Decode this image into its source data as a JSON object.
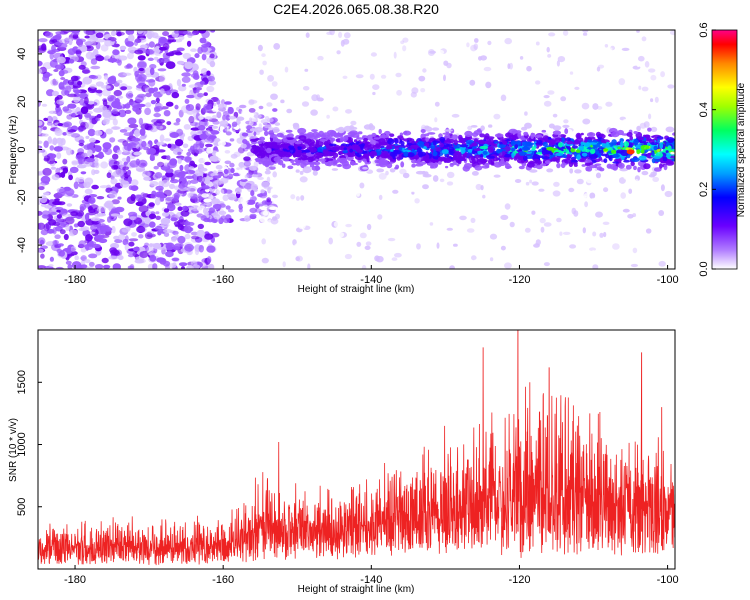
{
  "chart_data": [
    {
      "type": "heatmap",
      "title": "C2E4.2026.065.08.38.R20",
      "xlabel": "Height of straight line (km)",
      "ylabel": "Frequency (Hz)",
      "xlim": [
        -185,
        -99
      ],
      "ylim": [
        -50,
        50
      ],
      "xticks": [
        -180,
        -160,
        -140,
        -120,
        -100
      ],
      "yticks": [
        -40,
        -20,
        0,
        20,
        40
      ],
      "colorbar": {
        "label": "Normalized spectral amplitude",
        "range": [
          0.0,
          0.6
        ],
        "ticks": [
          "0.0",
          "0.2",
          "0.4",
          "0.6"
        ],
        "colors": [
          "#ffffff",
          "#8800ff",
          "#0000ff",
          "#00ffff",
          "#00ff00",
          "#ffff00",
          "#ff8800",
          "#ff0000",
          "#ff0088"
        ]
      },
      "description_regions": [
        {
          "x_range": [
            -185,
            -163
          ],
          "freq_range": [
            -50,
            50
          ],
          "level": 0.12
        },
        {
          "x_range": [
            -163,
            -155
          ],
          "freq_range": [
            -25,
            15
          ],
          "level": 0.15
        },
        {
          "x_range": [
            -155,
            -99
          ],
          "freq_center": 0,
          "freq_halfwidth": 6,
          "level": 0.3,
          "peak_x": -105,
          "peak_level": 0.6
        }
      ]
    },
    {
      "type": "line",
      "xlabel": "Height of straight line (km)",
      "ylabel": "SNR (10 * v/v)",
      "xlim": [
        -185,
        -99
      ],
      "ylim": [
        0,
        1920
      ],
      "xticks": [
        -180,
        -160,
        -140,
        -120,
        -100
      ],
      "yticks": [
        500,
        1000,
        1500
      ],
      "series": [
        {
          "name": "SNR",
          "color": "#ee2222",
          "envelope": [
            {
              "x": -185,
              "base": 120,
              "amp": 180
            },
            {
              "x": -165,
              "base": 120,
              "amp": 180
            },
            {
              "x": -157,
              "base": 150,
              "amp": 220
            },
            {
              "x": -155,
              "base": 250,
              "amp": 350
            },
            {
              "x": -150,
              "base": 220,
              "amp": 300
            },
            {
              "x": -145,
              "base": 200,
              "amp": 250
            },
            {
              "x": -138,
              "base": 280,
              "amp": 350
            },
            {
              "x": -130,
              "base": 330,
              "amp": 420
            },
            {
              "x": -125,
              "base": 380,
              "amp": 500
            },
            {
              "x": -120,
              "base": 420,
              "amp": 700
            },
            {
              "x": -115,
              "base": 420,
              "amp": 650
            },
            {
              "x": -110,
              "base": 380,
              "amp": 520
            },
            {
              "x": -105,
              "base": 350,
              "amp": 500
            },
            {
              "x": -100,
              "base": 330,
              "amp": 480
            },
            {
              "x": -99,
              "base": 330,
              "amp": 480
            }
          ],
          "peaks": [
            {
              "x": -152.5,
              "y": 1020
            },
            {
              "x": -124.9,
              "y": 1780
            },
            {
              "x": -120.2,
              "y": 1920
            },
            {
              "x": -118.6,
              "y": 1500
            },
            {
              "x": -116.0,
              "y": 1620
            },
            {
              "x": -113.8,
              "y": 1380
            },
            {
              "x": -103.5,
              "y": 1740
            },
            {
              "x": -110.5,
              "y": 1250
            },
            {
              "x": -130.1,
              "y": 1150
            },
            {
              "x": -100.8,
              "y": 1300
            }
          ]
        }
      ]
    }
  ]
}
